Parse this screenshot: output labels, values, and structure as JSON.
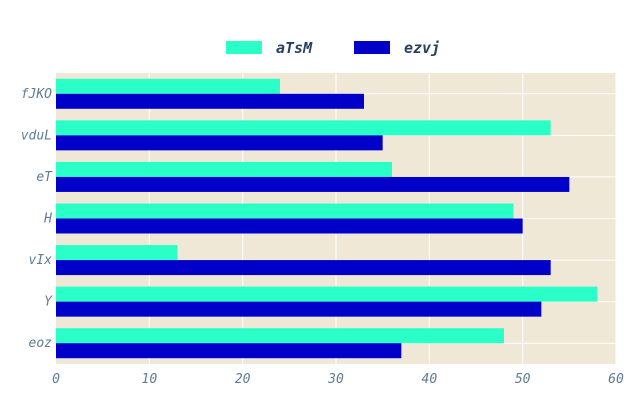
{
  "chart_data": {
    "type": "bar",
    "orientation": "horizontal",
    "title": "",
    "xlabel": "",
    "ylabel": "",
    "xlim": [
      0,
      60
    ],
    "xticks": [
      0,
      10,
      20,
      30,
      40,
      50,
      60
    ],
    "grid": true,
    "legend_position": "top-center",
    "categories": [
      "fJKO",
      "vduL",
      "eT",
      "H",
      "vIx",
      "Y",
      "eoz"
    ],
    "series": [
      {
        "name": "aTsM",
        "color": "#2affc8",
        "values": [
          24,
          53,
          36,
          49,
          13,
          58,
          48
        ]
      },
      {
        "name": "ezvj",
        "color": "#0000c8",
        "values": [
          33,
          35,
          55,
          50,
          53,
          52,
          37
        ]
      }
    ],
    "plot_background": "#efe8d6"
  }
}
